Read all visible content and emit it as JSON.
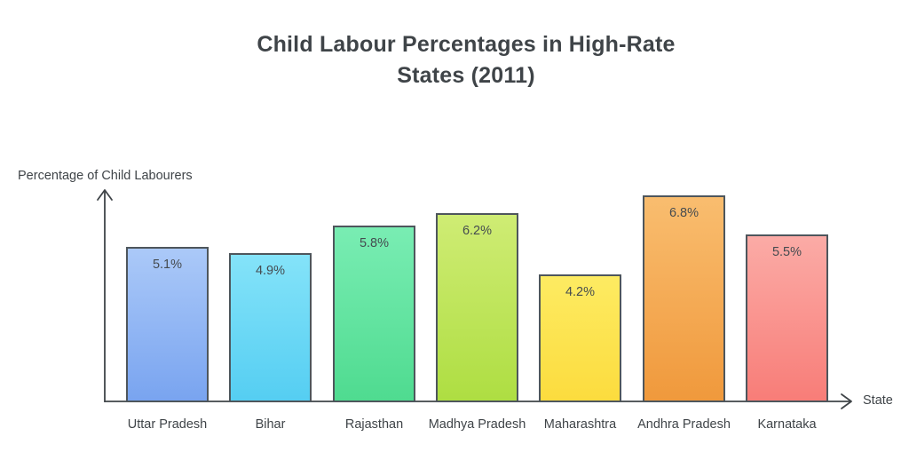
{
  "chart_data": {
    "type": "bar",
    "title": "Child Labour Percentages in High-Rate States (2011)",
    "title_lines": [
      "Child Labour Percentages in High-Rate",
      "States (2011)"
    ],
    "xlabel": "State",
    "ylabel": "Percentage of Child Labourers",
    "categories": [
      "Uttar Pradesh",
      "Bihar",
      "Rajasthan",
      "Madhya Pradesh",
      "Maharashtra",
      "Andhra Pradesh",
      "Karnataka"
    ],
    "values": [
      5.1,
      4.9,
      5.8,
      6.2,
      4.2,
      6.8,
      5.5
    ],
    "unit": "%",
    "value_labels": [
      "5.1%",
      "4.9%",
      "5.8%",
      "6.2%",
      "4.2%",
      "6.8%",
      "5.5%"
    ],
    "grid": false,
    "legend": "none",
    "y_axis_ticks": "none",
    "value_label_position": "inside-top",
    "bar_colors": [
      {
        "top": "#abc9f8",
        "bottom": "#79a4f0"
      },
      {
        "top": "#84e3f9",
        "bottom": "#55cef2"
      },
      {
        "top": "#79edb3",
        "bottom": "#4fdb90"
      },
      {
        "top": "#cfec74",
        "bottom": "#aede42"
      },
      {
        "top": "#fdeb62",
        "bottom": "#fcdc3e"
      },
      {
        "top": "#f9bd6f",
        "bottom": "#f0993c"
      },
      {
        "top": "#fbaba6",
        "bottom": "#f87d78"
      }
    ],
    "bar_border_color": "#4e565c",
    "axis_color": "#3f4448",
    "text_color": "#3f4448"
  }
}
